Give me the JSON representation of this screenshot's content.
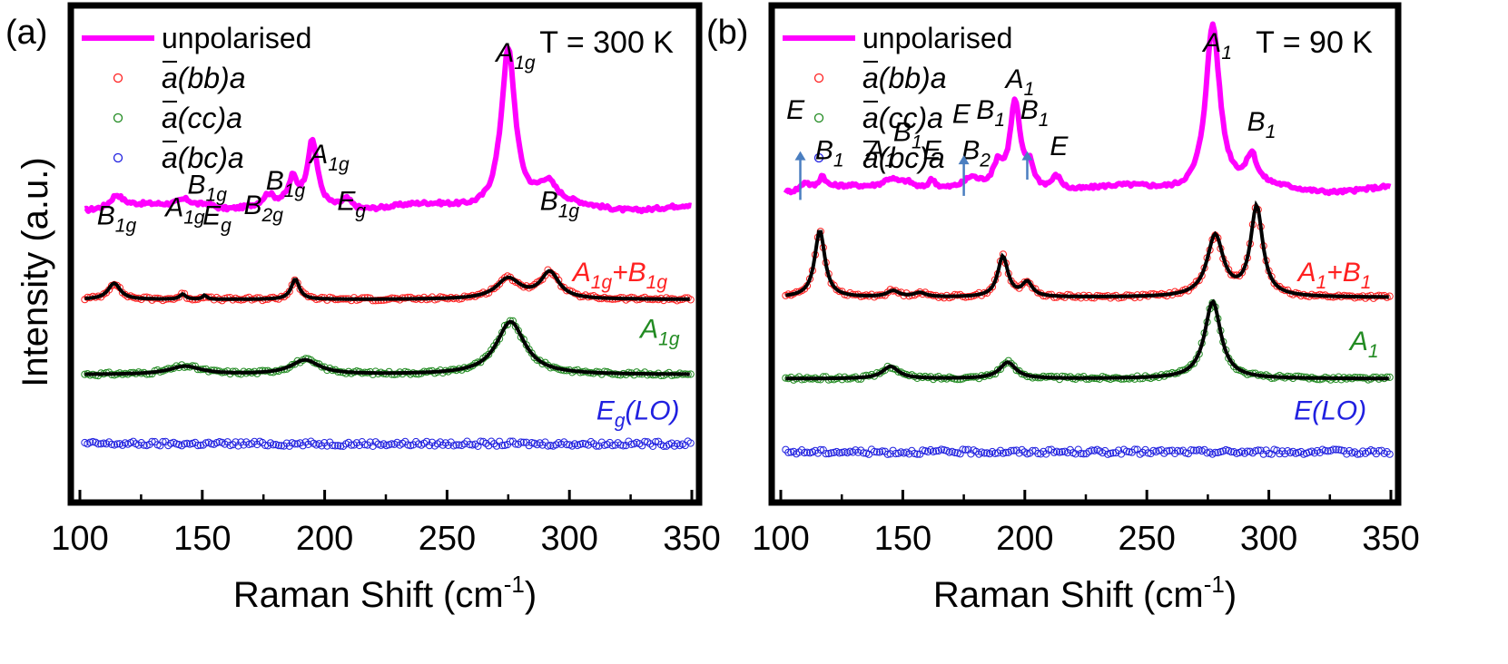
{
  "figure": {
    "xlabel_main": "Raman Shift (cm",
    "xlabel_sup": "-1",
    "xlabel_close": ")",
    "ylabel": "Intensity (a.u.)"
  },
  "chart_data": [
    {
      "type": "line",
      "panel_label": "(a)",
      "temperature_label": "T = 300 K",
      "xlabel": "Raman Shift (cm-1)",
      "ylabel": "Intensity (a.u.)",
      "xlim": [
        100,
        350
      ],
      "xticks": [
        100,
        150,
        200,
        250,
        300,
        350
      ],
      "colors": {
        "unpolarised": "#ff00ff",
        "bb": "#ff2020",
        "cc": "#228b22",
        "bc": "#2020e0",
        "fit": "#000000"
      },
      "legend": [
        {
          "text": "unpolarised",
          "color": "#ff00ff"
        },
        {
          "text": "a(bb)a",
          "color": "#ff2020"
        },
        {
          "text": "a(cc)a",
          "color": "#228b22"
        },
        {
          "text": "a(bc)a",
          "color": "#2020e0"
        }
      ],
      "series": [
        {
          "name": "unpolarised",
          "baseline": 0.64,
          "peaks": [
            [
              115,
              0.06,
              3
            ],
            [
              143,
              0.04,
              4
            ],
            [
              152,
              0.025,
              4
            ],
            [
              177,
              0.05,
              2.5
            ],
            [
              187,
              0.12,
              2
            ],
            [
              195,
              0.32,
              2.5
            ],
            [
              209,
              0.05,
              2.5
            ],
            [
              275,
              0.79,
              3.5
            ],
            [
              291,
              0.1,
              4.5
            ]
          ]
        },
        {
          "name": "a(bb)a",
          "baseline": 1.09,
          "noise": 0.004,
          "peaks": [
            [
              114,
              0.08,
              3
            ],
            [
              142,
              0.025,
              1.5
            ],
            [
              151,
              0.02,
              1
            ],
            [
              188,
              0.1,
              2
            ],
            [
              275,
              0.1,
              6
            ],
            [
              292,
              0.13,
              4.5
            ]
          ]
        },
        {
          "name": "a(cc)a",
          "baseline": 1.46,
          "noise": 0.004,
          "peaks": [
            [
              143,
              0.04,
              8
            ],
            [
              192,
              0.07,
              7
            ],
            [
              276,
              0.26,
              7
            ]
          ]
        },
        {
          "name": "a(bc)a",
          "baseline": 1.8,
          "noise": 0.006,
          "peaks": []
        }
      ],
      "annotations": [
        {
          "label": "B",
          "sub": "1g",
          "x": 115,
          "level": 0.72
        },
        {
          "label": "A",
          "sub": "1g",
          "x": 143,
          "level": 0.68
        },
        {
          "label": "B",
          "sub": "1g",
          "x": 152,
          "level": 0.57
        },
        {
          "label": "E",
          "sub": "g",
          "x": 156,
          "level": 0.72
        },
        {
          "label": "B",
          "sub": "2g",
          "x": 175,
          "level": 0.67
        },
        {
          "label": "B",
          "sub": "1g",
          "x": 184,
          "level": 0.55
        },
        {
          "label": "A",
          "sub": "1g",
          "x": 202,
          "level": 0.42
        },
        {
          "label": "E",
          "sub": "g",
          "x": 211,
          "level": 0.65
        },
        {
          "label": "A",
          "sub": "1g",
          "x": 278,
          "level": -0.08
        },
        {
          "label": "B",
          "sub": "1g",
          "x": 296,
          "level": 0.65
        }
      ],
      "side_labels": [
        {
          "label": "A",
          "sub": "1g",
          "label2": "+B",
          "sub2": "1g",
          "color": "#ff2020",
          "x": 340,
          "level": 1.0
        },
        {
          "label": "A",
          "sub": "1g",
          "color": "#228b22",
          "x": 345,
          "level": 1.28
        },
        {
          "label": "E",
          "sub": "g",
          "tail": "(LO)",
          "color": "#2020e0",
          "x": 345,
          "level": 1.68
        }
      ]
    },
    {
      "type": "line",
      "panel_label": "(b)",
      "temperature_label": "T = 90 K",
      "xlabel": "Raman Shift (cm-1)",
      "ylabel": "Intensity (a.u.)",
      "xlim": [
        100,
        350
      ],
      "xticks": [
        100,
        150,
        200,
        250,
        300,
        350
      ],
      "colors": {
        "unpolarised": "#ff00ff",
        "bb": "#ff2020",
        "cc": "#228b22",
        "bc": "#2020e0",
        "fit": "#000000",
        "arrow": "#4a7ec0"
      },
      "legend": [
        {
          "text": "unpolarised",
          "color": "#ff00ff"
        },
        {
          "text": "a(bb)a",
          "color": "#ff2020"
        },
        {
          "text": "a(cc)a",
          "color": "#228b22"
        },
        {
          "text": "a(bc)a",
          "color": "#2020e0"
        }
      ],
      "series": [
        {
          "name": "unpolarised",
          "baseline": 0.55,
          "peaks": [
            [
              110,
              0.04,
              2
            ],
            [
              117,
              0.06,
              1.5
            ],
            [
              145,
              0.05,
              4
            ],
            [
              152,
              0.04,
              4
            ],
            [
              162,
              0.05,
              2
            ],
            [
              178,
              0.04,
              3
            ],
            [
              189,
              0.1,
              2
            ],
            [
              196,
              0.42,
              2.5
            ],
            [
              202,
              0.1,
              2
            ],
            [
              213,
              0.07,
              2.5
            ],
            [
              277,
              0.82,
              3.5
            ],
            [
              293,
              0.14,
              2.5
            ]
          ]
        },
        {
          "name": "a(bb)a",
          "baseline": 1.08,
          "noise": 0.004,
          "peaks": [
            [
              116,
              0.33,
              2.5
            ],
            [
              146,
              0.03,
              3
            ],
            [
              157,
              0.02,
              3
            ],
            [
              191,
              0.2,
              2.5
            ],
            [
              201,
              0.07,
              2.5
            ],
            [
              278,
              0.3,
              4
            ],
            [
              295,
              0.44,
              3
            ]
          ]
        },
        {
          "name": "a(cc)a",
          "baseline": 1.48,
          "noise": 0.004,
          "peaks": [
            [
              145,
              0.06,
              4
            ],
            [
              193,
              0.08,
              4
            ],
            [
              277,
              0.38,
              4
            ]
          ]
        },
        {
          "name": "a(bc)a",
          "baseline": 1.84,
          "noise": 0.006,
          "peaks": []
        }
      ],
      "annotations": [
        {
          "label": "E",
          "x": 106,
          "level": 0.2
        },
        {
          "label": "B",
          "sub": "1",
          "x": 120,
          "level": 0.4
        },
        {
          "label": "A",
          "sub": "1",
          "x": 141,
          "level": 0.4
        },
        {
          "label": "B",
          "sub": "1",
          "x": 152,
          "level": 0.31
        },
        {
          "label": "E",
          "x": 162,
          "level": 0.4
        },
        {
          "label": "E",
          "x": 174,
          "level": 0.22
        },
        {
          "label": "B",
          "sub": "1",
          "x": 186,
          "level": 0.2
        },
        {
          "label": "B",
          "sub": "2",
          "x": 180,
          "level": 0.4
        },
        {
          "label": "A",
          "sub": "1",
          "x": 198,
          "level": 0.05
        },
        {
          "label": "B",
          "sub": "1",
          "x": 204,
          "level": 0.2
        },
        {
          "label": "E",
          "x": 214,
          "level": 0.38
        },
        {
          "label": "A",
          "sub": "1",
          "x": 279,
          "level": -0.13
        },
        {
          "label": "B",
          "sub": "1",
          "x": 297,
          "level": 0.26
        }
      ],
      "arrows": [
        {
          "x": 108,
          "from": 0.6,
          "to": 0.36
        },
        {
          "x": 175,
          "from": 0.58,
          "to": 0.38
        },
        {
          "x": 201,
          "from": 0.5,
          "to": 0.36
        }
      ],
      "side_labels": [
        {
          "label": "A",
          "sub": "1",
          "label2": "+B",
          "sub2": "1",
          "color": "#ff2020",
          "x": 342,
          "level": 1.0
        },
        {
          "label": "A",
          "sub": "1",
          "color": "#228b22",
          "x": 345,
          "level": 1.34
        },
        {
          "label": "E(LO)",
          "color": "#2020e0",
          "x": 340,
          "level": 1.68
        }
      ]
    }
  ]
}
